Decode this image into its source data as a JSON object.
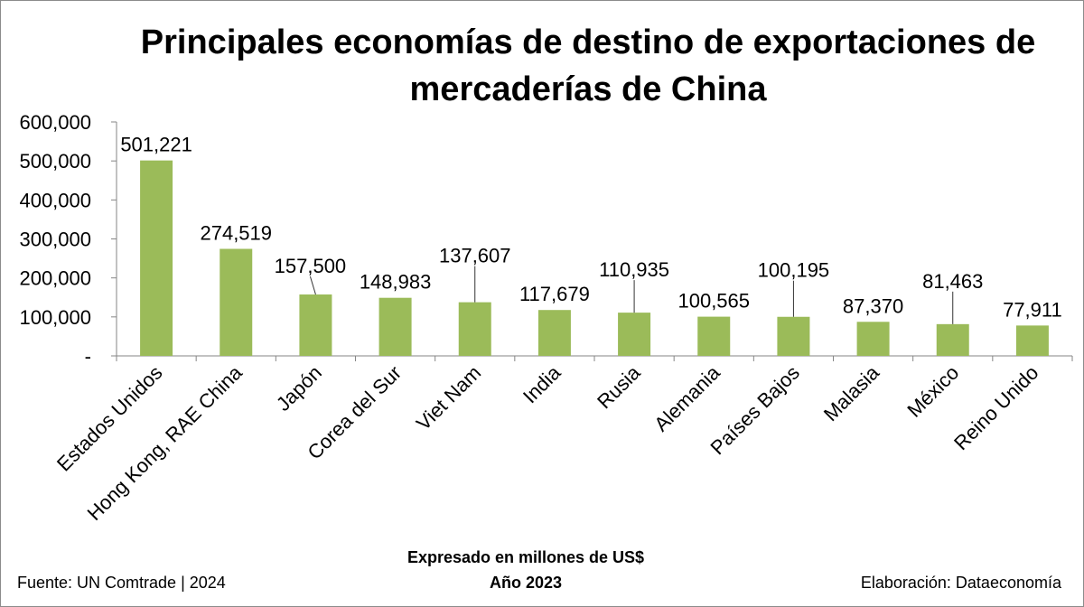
{
  "chart_data": {
    "type": "bar",
    "title": "Principales economías de destino de exportaciones de mercaderías de China",
    "categories": [
      "Estados Unidos",
      "Hong Kong, RAE China",
      "Japón",
      "Corea del Sur",
      "Viet Nam",
      "India",
      "Rusia",
      "Alemania",
      "Países Bajos",
      "Malasia",
      "México",
      "Reino Unido"
    ],
    "values": [
      501221,
      274519,
      157500,
      148983,
      137607,
      117679,
      110935,
      100565,
      100195,
      87370,
      81463,
      77911
    ],
    "value_labels": [
      "501,221",
      "274,519",
      "157,500",
      "148,983",
      "137,607",
      "117,679",
      "110,935",
      "100,565",
      "100,195",
      "87,370",
      "81,463",
      "77,911"
    ],
    "y_ticks": [
      "-",
      "100,000",
      "200,000",
      "300,000",
      "400,000",
      "500,000",
      "600,000"
    ],
    "ylim": [
      0,
      600000
    ],
    "grid": false,
    "legend": "none",
    "bar_color": "#9bbb59",
    "leader_line_color": "#333333"
  },
  "notes": {
    "units": "Expresado en millones de US$",
    "year": "Año 2023",
    "source": "Fuente:  UN Comtrade | 2024",
    "credit": "Elaboración: Dataeconomía"
  }
}
